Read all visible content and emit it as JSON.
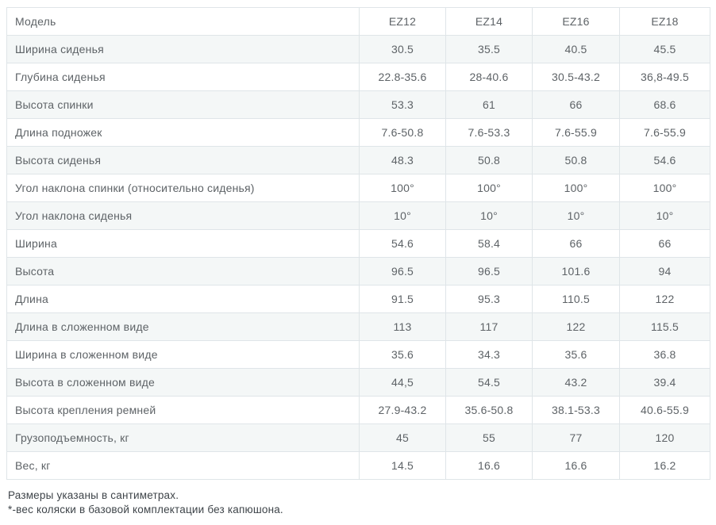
{
  "table": {
    "header": {
      "label": "Модель",
      "models": [
        "EZ12",
        "EZ14",
        "EZ16",
        "EZ18"
      ]
    },
    "rows": [
      {
        "label": "Ширина сиденья",
        "values": [
          "30.5",
          "35.5",
          "40.5",
          "45.5"
        ]
      },
      {
        "label": "Глубина сиденья",
        "values": [
          "22.8-35.6",
          "28-40.6",
          "30.5-43.2",
          "36,8-49.5"
        ]
      },
      {
        "label": "Высота спинки",
        "values": [
          "53.3",
          "61",
          "66",
          "68.6"
        ]
      },
      {
        "label": "Длина подножек",
        "values": [
          "7.6-50.8",
          "7.6-53.3",
          "7.6-55.9",
          "7.6-55.9"
        ]
      },
      {
        "label": "Высота сиденья",
        "values": [
          "48.3",
          "50.8",
          "50.8",
          "54.6"
        ]
      },
      {
        "label": "Угол наклона спинки (относительно сиденья)",
        "values": [
          "100°",
          "100°",
          "100°",
          "100°"
        ]
      },
      {
        "label": "Угол наклона сиденья",
        "values": [
          "10°",
          "10°",
          "10°",
          "10°"
        ]
      },
      {
        "label": "Ширина",
        "values": [
          "54.6",
          "58.4",
          "66",
          "66"
        ]
      },
      {
        "label": "Высота",
        "values": [
          "96.5",
          "96.5",
          "101.6",
          "94"
        ]
      },
      {
        "label": "Длина",
        "values": [
          "91.5",
          "95.3",
          "110.5",
          "122"
        ]
      },
      {
        "label": "Длина в сложенном виде",
        "values": [
          "113",
          "117",
          "122",
          "115.5"
        ]
      },
      {
        "label": "Ширина в сложенном виде",
        "values": [
          "35.6",
          "34.3",
          "35.6",
          "36.8"
        ]
      },
      {
        "label": "Высота в сложенном виде",
        "values": [
          "44,5",
          "54.5",
          "43.2",
          "39.4"
        ]
      },
      {
        "label": "Высота крепления ремней",
        "values": [
          "27.9-43.2",
          "35.6-50.8",
          "38.1-53.3",
          "40.6-55.9"
        ]
      },
      {
        "label": "Грузоподъемность, кг",
        "values": [
          "45",
          "55",
          "77",
          "120"
        ]
      },
      {
        "label": "Вес, кг",
        "values": [
          "14.5",
          "16.6",
          "16.6",
          "16.2"
        ]
      }
    ]
  },
  "footnotes": [
    "Размеры указаны в сантиметрах.",
    "*-вес коляски в базовой комплектации без капюшона."
  ],
  "colors": {
    "row_stripe": "#f4f7f7",
    "border": "#dfe5e8",
    "cell_text": "#5e6367",
    "footnote_text": "#3e4449"
  }
}
